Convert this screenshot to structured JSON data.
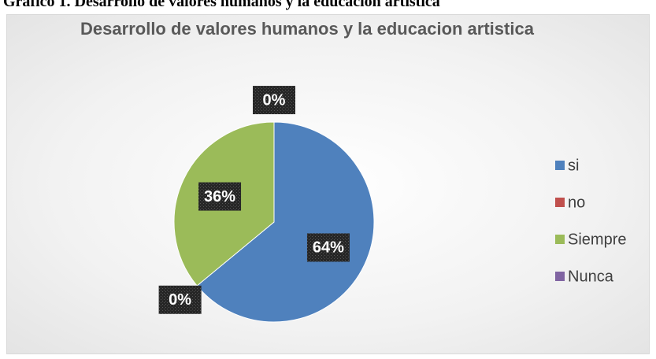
{
  "caption": "Gráfico 1. Desarrollo de valores humanos y la educacion artistica",
  "chart_data": {
    "type": "pie",
    "title": "Desarrollo de valores humanos y la educacion artistica",
    "categories": [
      "si",
      "no",
      "Siempre",
      "Nunca"
    ],
    "values": [
      64,
      0,
      36,
      0
    ],
    "value_labels": [
      "64%",
      "0%",
      "36%",
      "0%"
    ],
    "colors": [
      "#4f81bd",
      "#c0504d",
      "#9bbb59",
      "#8064a2"
    ],
    "legend": "right"
  }
}
